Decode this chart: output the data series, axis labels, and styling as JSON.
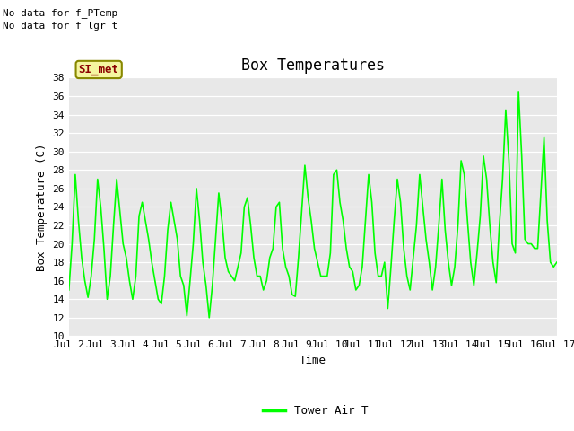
{
  "title": "Box Temperatures",
  "xlabel": "Time",
  "ylabel": "Box Temperature (C)",
  "ylim": [
    10,
    38
  ],
  "yticks": [
    10,
    12,
    14,
    16,
    18,
    20,
    22,
    24,
    26,
    28,
    30,
    32,
    34,
    36,
    38
  ],
  "xtick_labels": [
    "Jul 2",
    "Jul 3",
    "Jul 4",
    "Jul 5",
    "Jul 6",
    "Jul 7",
    "Jul 8",
    "Jul 9",
    "Jul 10",
    "Jul 11",
    "Jul 12",
    "Jul 13",
    "Jul 14",
    "Jul 15",
    "Jul 16",
    "Jul 17"
  ],
  "fig_bg_color": "#ffffff",
  "plot_bg_color": "#e8e8e8",
  "grid_color": "#ffffff",
  "line_color": "#00ff00",
  "legend_label": "Tower Air T",
  "no_data_texts": [
    "No data for f_PTemp",
    "No data for f_lgr_t"
  ],
  "si_met_label": "SI_met",
  "title_fontsize": 12,
  "axis_fontsize": 9,
  "tick_fontsize": 8,
  "tower_air_t": [
    15.0,
    20.0,
    27.5,
    22.5,
    18.5,
    16.0,
    14.2,
    16.5,
    20.5,
    27.0,
    24.0,
    19.5,
    14.0,
    16.5,
    22.0,
    27.0,
    23.5,
    20.0,
    18.5,
    16.0,
    14.0,
    16.5,
    23.0,
    24.5,
    22.5,
    20.5,
    18.0,
    16.0,
    14.0,
    13.5,
    16.5,
    21.5,
    24.5,
    22.5,
    20.5,
    16.5,
    15.5,
    12.2,
    16.0,
    20.0,
    26.0,
    22.5,
    18.0,
    15.5,
    12.0,
    15.5,
    20.5,
    25.5,
    22.5,
    18.5,
    17.0,
    16.5,
    16.0,
    17.5,
    19.0,
    24.0,
    25.0,
    22.0,
    18.5,
    16.5,
    16.5,
    15.0,
    16.0,
    18.5,
    19.5,
    24.0,
    24.5,
    19.5,
    17.5,
    16.5,
    14.5,
    14.3,
    18.5,
    23.5,
    28.5,
    25.0,
    22.5,
    19.5,
    18.0,
    16.5,
    16.5,
    16.5,
    19.0,
    27.5,
    28.0,
    24.5,
    22.5,
    19.5,
    17.5,
    17.0,
    15.0,
    15.5,
    17.5,
    22.5,
    27.5,
    24.5,
    19.0,
    16.5,
    16.5,
    18.0,
    13.0,
    17.5,
    22.5,
    27.0,
    24.5,
    19.5,
    16.5,
    15.0,
    18.5,
    22.0,
    27.5,
    24.0,
    20.5,
    18.0,
    15.0,
    17.5,
    22.0,
    27.0,
    21.5,
    18.0,
    15.5,
    17.5,
    22.0,
    29.0,
    27.5,
    22.5,
    18.0,
    15.5,
    19.0,
    23.0,
    29.5,
    27.0,
    22.0,
    18.0,
    15.8,
    22.0,
    27.0,
    34.5,
    29.0,
    20.0,
    19.0,
    36.5,
    29.5,
    20.5,
    20.0,
    20.0,
    19.5,
    19.5,
    25.5,
    31.5,
    22.5,
    18.0,
    17.5,
    18.0
  ]
}
